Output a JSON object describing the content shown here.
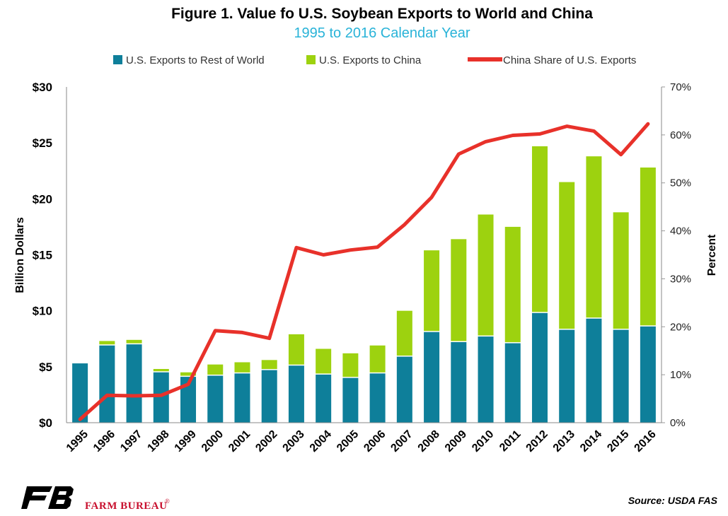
{
  "chart_data": {
    "type": "bar",
    "stacked": true,
    "title": "Figure 1. Value fo U.S. Soybean Exports to World and China",
    "subtitle": "1995 to 2016 Calendar Year",
    "ylabel": "Billion Dollars",
    "ylabel_right": "Percent",
    "ylim": [
      0,
      30
    ],
    "ylim_right": [
      0,
      70
    ],
    "yticks": [
      "$0",
      "$5",
      "$10",
      "$15",
      "$20",
      "$25",
      "$30"
    ],
    "yticks_right": [
      "0%",
      "10%",
      "20%",
      "30%",
      "40%",
      "50%",
      "60%",
      "70%"
    ],
    "legend_position": "top",
    "grid": false,
    "categories": [
      "1995",
      "1996",
      "1997",
      "1998",
      "1999",
      "2000",
      "2001",
      "2002",
      "2003",
      "2004",
      "2005",
      "2006",
      "2007",
      "2008",
      "2009",
      "2010",
      "2011",
      "2012",
      "2013",
      "2014",
      "2015",
      "2016"
    ],
    "series": [
      {
        "name": "U.S. Exports to Rest of World",
        "type": "bar",
        "color": "#0e7f9a",
        "values": [
          5.3,
          6.9,
          7.0,
          4.5,
          4.1,
          4.2,
          4.4,
          4.7,
          5.1,
          4.3,
          4.0,
          4.4,
          5.9,
          8.1,
          7.2,
          7.7,
          7.1,
          9.8,
          8.3,
          9.3,
          8.3,
          8.6
        ]
      },
      {
        "name": "U.S. Exports to China",
        "type": "bar",
        "color": "#9dd20f",
        "values": [
          0.0,
          0.4,
          0.4,
          0.3,
          0.4,
          1.0,
          1.0,
          0.9,
          2.8,
          2.3,
          2.2,
          2.5,
          4.1,
          7.3,
          9.2,
          10.9,
          10.4,
          14.9,
          13.2,
          14.5,
          10.5,
          14.2
        ]
      },
      {
        "name": "China Share of U.S. Exports",
        "type": "line",
        "axis": "right",
        "color": "#e8312a",
        "values": [
          0.7,
          5.7,
          5.6,
          5.7,
          8.0,
          19.2,
          18.8,
          17.6,
          36.5,
          35.0,
          36.0,
          36.6,
          41.3,
          47.0,
          56.0,
          58.6,
          59.9,
          60.2,
          61.8,
          60.8,
          55.9,
          62.3
        ]
      }
    ],
    "source": "Source: USDA FAS"
  },
  "logo": {
    "mark_text": "FB",
    "brand_text": "FARM BUREAU",
    "registered": "®"
  },
  "colors": {
    "rest_of_world": "#0e7f9a",
    "china": "#9dd20f",
    "share_line": "#e8312a",
    "subtitle": "#29b3d8",
    "brand_red": "#c8102e"
  }
}
